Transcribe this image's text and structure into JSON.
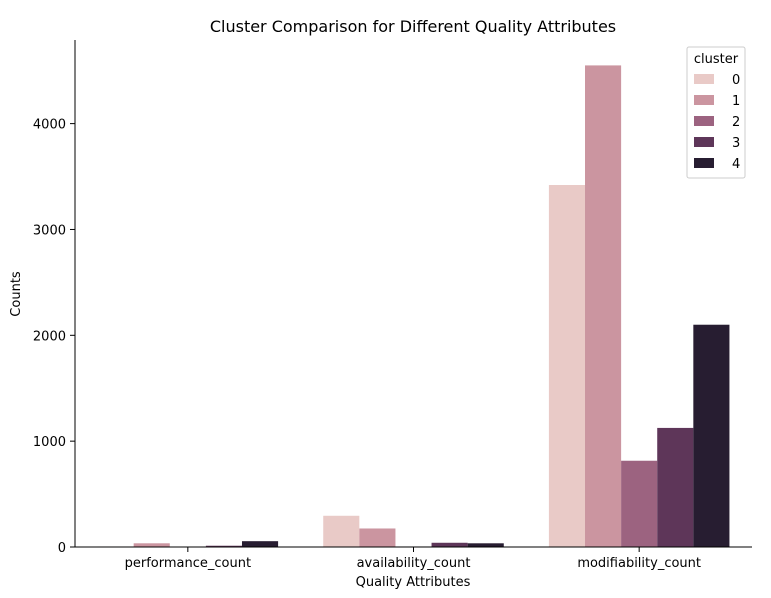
{
  "chart_data": {
    "type": "bar",
    "title": "Cluster Comparison for Different Quality Attributes",
    "xlabel": "Quality Attributes",
    "ylabel": "Counts",
    "categories": [
      "performance_count",
      "availability_count",
      "modifiability_count"
    ],
    "ylim": [
      0,
      4790
    ],
    "yticks": [
      0,
      1000,
      2000,
      3000,
      4000
    ],
    "grid": false,
    "legend": {
      "title": "cluster",
      "placement": "top-right"
    },
    "series": [
      {
        "name": "0",
        "color": "#e9cac7",
        "values": [
          5,
          295,
          3420
        ]
      },
      {
        "name": "1",
        "color": "#cb95a0",
        "values": [
          35,
          175,
          4550
        ]
      },
      {
        "name": "2",
        "color": "#9c6380",
        "values": [
          2,
          5,
          815
        ]
      },
      {
        "name": "3",
        "color": "#5e3659",
        "values": [
          12,
          40,
          1125
        ]
      },
      {
        "name": "4",
        "color": "#271d31",
        "values": [
          55,
          35,
          2100
        ]
      }
    ]
  }
}
